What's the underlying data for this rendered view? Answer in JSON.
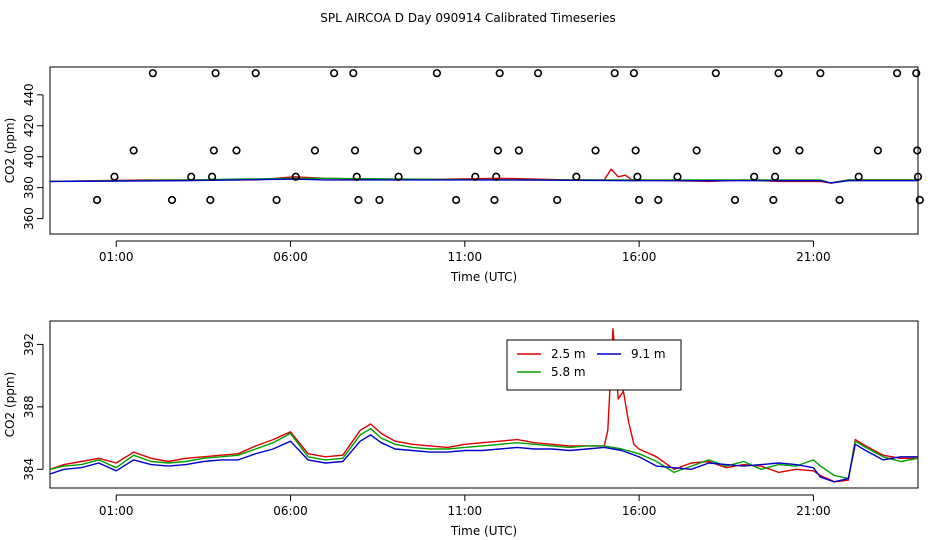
{
  "figure_title": "SPL AIRCOA D  Day 090914  Calibrated Timeseries",
  "chart_data": [
    {
      "type": "scatter+line",
      "title": "",
      "xlabel": "Time (UTC)",
      "ylabel": "CO2 (ppm)",
      "xlim": [
        -0.9,
        24.0
      ],
      "ylim": [
        350,
        458
      ],
      "xticks": [
        1,
        6,
        11,
        16,
        21
      ],
      "xtick_labels": [
        "01:00",
        "06:00",
        "11:00",
        "16:00",
        "21:00"
      ],
      "yticks": [
        360,
        380,
        400,
        420,
        440
      ],
      "ytick_labels": [
        "360",
        "380",
        "400",
        "420",
        "440"
      ],
      "calibration_points": [
        {
          "x": 0.45,
          "y": 372
        },
        {
          "x": 0.95,
          "y": 387
        },
        {
          "x": 1.5,
          "y": 404
        },
        {
          "x": 2.05,
          "y": 454
        },
        {
          "x": 2.6,
          "y": 372
        },
        {
          "x": 3.15,
          "y": 387
        },
        {
          "x": 3.7,
          "y": 372
        },
        {
          "x": 3.75,
          "y": 387
        },
        {
          "x": 3.8,
          "y": 404
        },
        {
          "x": 3.85,
          "y": 454
        },
        {
          "x": 4.45,
          "y": 404
        },
        {
          "x": 5.0,
          "y": 454
        },
        {
          "x": 5.6,
          "y": 372
        },
        {
          "x": 6.15,
          "y": 387
        },
        {
          "x": 6.7,
          "y": 404
        },
        {
          "x": 7.25,
          "y": 454
        },
        {
          "x": 7.8,
          "y": 454
        },
        {
          "x": 7.85,
          "y": 404
        },
        {
          "x": 7.9,
          "y": 387
        },
        {
          "x": 7.95,
          "y": 372
        },
        {
          "x": 8.55,
          "y": 372
        },
        {
          "x": 9.1,
          "y": 387
        },
        {
          "x": 9.65,
          "y": 404
        },
        {
          "x": 10.2,
          "y": 454
        },
        {
          "x": 10.75,
          "y": 372
        },
        {
          "x": 11.3,
          "y": 387
        },
        {
          "x": 11.85,
          "y": 372
        },
        {
          "x": 11.9,
          "y": 387
        },
        {
          "x": 11.95,
          "y": 404
        },
        {
          "x": 12.0,
          "y": 454
        },
        {
          "x": 12.55,
          "y": 404
        },
        {
          "x": 13.1,
          "y": 454
        },
        {
          "x": 13.65,
          "y": 372
        },
        {
          "x": 14.2,
          "y": 387
        },
        {
          "x": 14.75,
          "y": 404
        },
        {
          "x": 15.3,
          "y": 454
        },
        {
          "x": 15.85,
          "y": 454
        },
        {
          "x": 15.9,
          "y": 404
        },
        {
          "x": 15.95,
          "y": 387
        },
        {
          "x": 16.0,
          "y": 372
        },
        {
          "x": 16.55,
          "y": 372
        },
        {
          "x": 17.1,
          "y": 387
        },
        {
          "x": 17.65,
          "y": 404
        },
        {
          "x": 18.2,
          "y": 454
        },
        {
          "x": 18.75,
          "y": 372
        },
        {
          "x": 19.3,
          "y": 387
        },
        {
          "x": 19.85,
          "y": 372
        },
        {
          "x": 19.9,
          "y": 387
        },
        {
          "x": 19.95,
          "y": 404
        },
        {
          "x": 20.0,
          "y": 454
        },
        {
          "x": 20.6,
          "y": 404
        },
        {
          "x": 21.2,
          "y": 454
        },
        {
          "x": 21.75,
          "y": 372
        },
        {
          "x": 22.3,
          "y": 387
        },
        {
          "x": 22.85,
          "y": 404
        },
        {
          "x": 23.4,
          "y": 454
        },
        {
          "x": 23.95,
          "y": 454
        },
        {
          "x": 23.98,
          "y": 404
        },
        {
          "x": 24.0,
          "y": 387
        },
        {
          "x": 24.05,
          "y": 372
        }
      ],
      "series": [
        {
          "name": "2.5 m",
          "color": "#dd0000",
          "x": [
            -0.9,
            2,
            5,
            6.1,
            7,
            9,
            12,
            14,
            15,
            15.2,
            15.4,
            15.6,
            15.8,
            16,
            18,
            19,
            20,
            21.2,
            21.5,
            22,
            23,
            24
          ],
          "y": [
            384,
            385,
            385,
            387,
            386,
            385,
            386,
            385,
            385,
            392,
            387,
            388,
            385,
            385,
            384,
            385,
            384,
            384,
            383,
            385,
            385,
            385
          ]
        },
        {
          "name": "5.8 m",
          "color": "#00a000",
          "x": [
            -0.9,
            3,
            6.1,
            7,
            12,
            16,
            21.2,
            21.5,
            22,
            24
          ],
          "y": [
            384,
            385,
            386,
            386,
            385,
            385,
            385,
            383,
            385,
            385
          ]
        },
        {
          "name": "9.1 m",
          "color": "#0000cc",
          "x": [
            -0.9,
            3,
            6.1,
            7,
            12,
            16,
            21.2,
            21.5,
            22,
            24
          ],
          "y": [
            384,
            384.5,
            385.5,
            385,
            385,
            384.5,
            384.5,
            383,
            384.5,
            384.5
          ]
        }
      ]
    },
    {
      "type": "line",
      "title": "",
      "xlabel": "Time (UTC)",
      "ylabel": "CO2 (ppm)",
      "xlim": [
        -0.9,
        24.0
      ],
      "ylim": [
        382.8,
        393.5
      ],
      "xticks": [
        1,
        6,
        11,
        16,
        21
      ],
      "xtick_labels": [
        "01:00",
        "06:00",
        "11:00",
        "16:00",
        "21:00"
      ],
      "yticks": [
        384,
        388,
        392
      ],
      "ytick_labels": [
        "384",
        "388",
        "392"
      ],
      "legend": {
        "position": "top-center",
        "entries": [
          "2.5 m",
          "5.8 m",
          "9.1 m"
        ]
      },
      "series": [
        {
          "name": "2.5 m",
          "color": "#dd0000",
          "x": [
            -0.9,
            -0.5,
            0,
            0.5,
            1,
            1.5,
            2,
            2.5,
            3,
            3.5,
            4,
            4.5,
            5,
            5.5,
            6,
            6.5,
            7,
            7.5,
            8,
            8.3,
            8.6,
            9,
            9.5,
            10,
            10.5,
            11,
            11.5,
            12,
            12.5,
            13,
            13.5,
            14,
            14.5,
            15,
            15.1,
            15.25,
            15.4,
            15.55,
            15.7,
            15.85,
            16,
            16.5,
            17,
            17.5,
            18,
            18.5,
            19,
            19.5,
            20,
            20.5,
            21,
            21.2,
            21.6,
            22,
            22.2,
            22.5,
            23,
            23.5,
            24
          ],
          "y": [
            384.0,
            384.3,
            384.5,
            384.7,
            384.4,
            385.1,
            384.7,
            384.5,
            384.7,
            384.8,
            384.9,
            385.0,
            385.5,
            385.9,
            386.4,
            385.0,
            384.8,
            384.9,
            386.5,
            386.9,
            386.3,
            385.8,
            385.6,
            385.5,
            385.4,
            385.6,
            385.7,
            385.8,
            385.9,
            385.7,
            385.6,
            385.5,
            385.5,
            385.5,
            386.5,
            393.0,
            388.5,
            389.0,
            387.0,
            385.6,
            385.3,
            384.8,
            384.0,
            384.4,
            384.5,
            384.1,
            384.3,
            384.2,
            383.8,
            384.0,
            383.9,
            383.6,
            383.2,
            383.3,
            385.9,
            385.5,
            384.9,
            384.7,
            384.7
          ]
        },
        {
          "name": "5.8 m",
          "color": "#00a000",
          "x": [
            -0.9,
            -0.5,
            0,
            0.5,
            1,
            1.5,
            2,
            2.5,
            3,
            3.5,
            4,
            4.5,
            5,
            5.5,
            6,
            6.5,
            7,
            7.5,
            8,
            8.3,
            8.6,
            9,
            9.5,
            10,
            10.5,
            11,
            11.5,
            12,
            12.5,
            13,
            13.5,
            14,
            14.5,
            15,
            15.5,
            16,
            16.5,
            17,
            17.5,
            18,
            18.5,
            19,
            19.5,
            20,
            20.5,
            21,
            21.2,
            21.6,
            22,
            22.2,
            22.5,
            23,
            23.5,
            24
          ],
          "y": [
            384.0,
            384.2,
            384.3,
            384.6,
            384.1,
            384.9,
            384.5,
            384.4,
            384.5,
            384.7,
            384.8,
            384.9,
            385.3,
            385.7,
            386.3,
            384.8,
            384.6,
            384.7,
            386.2,
            386.6,
            386.0,
            385.6,
            385.4,
            385.3,
            385.3,
            385.4,
            385.5,
            385.6,
            385.7,
            385.6,
            385.5,
            385.4,
            385.5,
            385.5,
            385.3,
            385.0,
            384.5,
            383.8,
            384.2,
            384.6,
            384.2,
            384.5,
            384.0,
            384.3,
            384.2,
            384.6,
            384.2,
            383.6,
            383.4,
            385.8,
            385.4,
            384.8,
            384.5,
            384.7
          ]
        },
        {
          "name": "9.1 m",
          "color": "#0000cc",
          "x": [
            -0.9,
            -0.5,
            0,
            0.5,
            1,
            1.5,
            2,
            2.5,
            3,
            3.5,
            4,
            4.5,
            5,
            5.5,
            6,
            6.5,
            7,
            7.5,
            8,
            8.3,
            8.6,
            9,
            9.5,
            10,
            10.5,
            11,
            11.5,
            12,
            12.5,
            13,
            13.5,
            14,
            14.5,
            15,
            15.5,
            16,
            16.5,
            17,
            17.5,
            18,
            18.5,
            19,
            19.5,
            20,
            20.5,
            21,
            21.2,
            21.6,
            22,
            22.2,
            22.5,
            23,
            23.5,
            24
          ],
          "y": [
            383.7,
            384.0,
            384.1,
            384.4,
            383.9,
            384.6,
            384.3,
            384.2,
            384.3,
            384.5,
            384.6,
            384.6,
            385.0,
            385.3,
            385.8,
            384.6,
            384.4,
            384.5,
            385.8,
            386.2,
            385.7,
            385.3,
            385.2,
            385.1,
            385.1,
            385.2,
            385.2,
            385.3,
            385.4,
            385.3,
            385.3,
            385.2,
            385.3,
            385.4,
            385.2,
            384.8,
            384.2,
            384.1,
            384.0,
            384.4,
            384.3,
            384.2,
            384.3,
            384.4,
            384.3,
            384.1,
            383.5,
            383.2,
            383.4,
            385.6,
            385.2,
            384.6,
            384.8,
            384.8
          ]
        }
      ]
    }
  ]
}
